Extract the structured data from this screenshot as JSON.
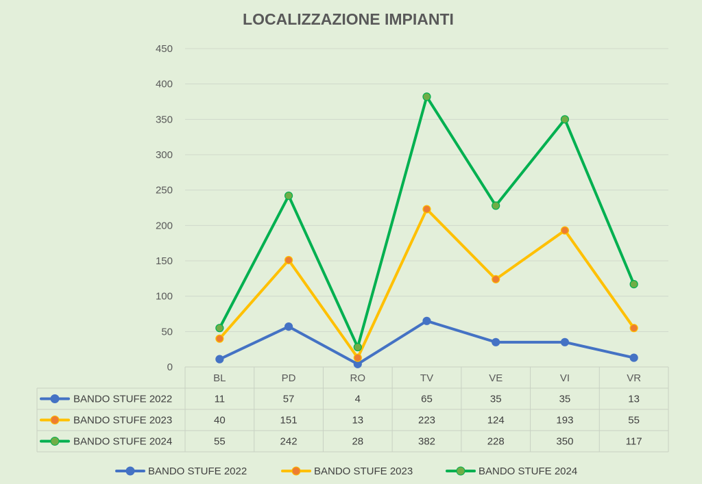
{
  "chart_data": {
    "type": "line",
    "title": "LOCALIZZAZIONE IMPIANTI",
    "categories": [
      "BL",
      "PD",
      "RO",
      "TV",
      "VE",
      "VI",
      "VR"
    ],
    "series": [
      {
        "name": "BANDO STUFE 2022",
        "values": [
          11,
          57,
          4,
          65,
          35,
          35,
          13
        ],
        "line_color": "#4472c4",
        "marker_color": "#4472c4"
      },
      {
        "name": "BANDO STUFE 2023",
        "values": [
          40,
          151,
          13,
          223,
          124,
          193,
          55
        ],
        "line_color": "#ffc000",
        "marker_color": "#ed7d31"
      },
      {
        "name": "BANDO STUFE 2024",
        "values": [
          55,
          242,
          28,
          382,
          228,
          350,
          117
        ],
        "line_color": "#00b050",
        "marker_color": "#70ad47"
      }
    ],
    "y_ticks": [
      0,
      50,
      100,
      150,
      200,
      250,
      300,
      350,
      400,
      450
    ],
    "ylim": [
      0,
      450
    ],
    "grid": true,
    "data_table": true,
    "legend": "bottom"
  }
}
